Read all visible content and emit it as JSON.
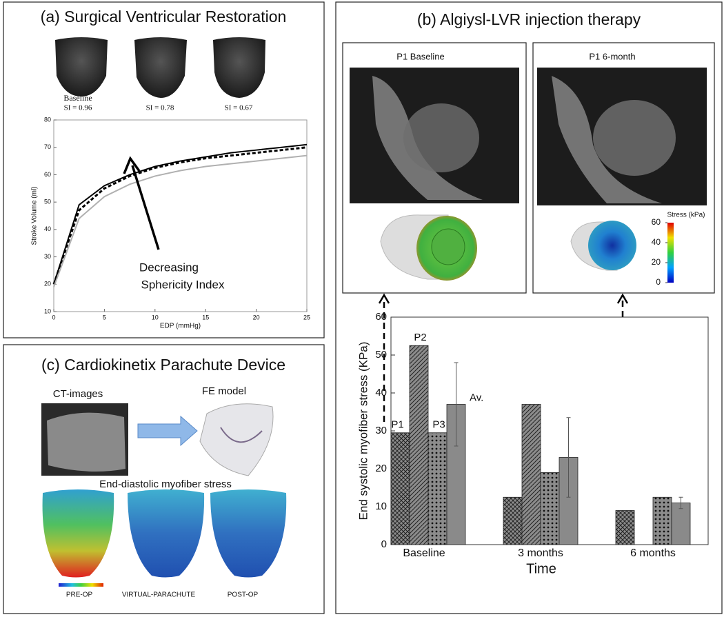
{
  "panel_a": {
    "title": "(a) Surgical Ventricular Restoration",
    "shape_label": "Baseline",
    "si_labels": [
      "SI = 0.96",
      "SI = 0.78",
      "SI = 0.67"
    ]
  },
  "panel_b": {
    "title": "(b) Algiysl-LVR injection therapy",
    "image_titles": [
      "P1 Baseline",
      "P1 6-month"
    ],
    "colorbar": {
      "label": "Stress (kPa)",
      "clim": [
        0,
        60
      ],
      "ticks": [
        0,
        20,
        40,
        60
      ]
    }
  },
  "panel_c": {
    "title": "(c) Cardiokinetix Parachute Device",
    "ct_label": "CT-images",
    "fe_label": "FE model",
    "stress_label": "End-diastolic myofiber stress",
    "case_labels": [
      "PRE-OP",
      "VIRTUAL-PARACHUTE",
      "POST-OP"
    ]
  },
  "chart_data": [
    {
      "type": "line",
      "x": [
        0,
        2.5,
        5,
        7.5,
        10,
        12.5,
        15,
        17.5,
        20,
        22.5,
        25
      ],
      "series": [
        {
          "color": "#000000",
          "linestyle": "solid",
          "values": [
            20,
            49,
            56,
            60,
            63,
            65,
            66.5,
            68,
            69,
            70,
            71
          ]
        },
        {
          "color": "#000000",
          "linestyle": "dashed",
          "values": [
            20,
            47,
            55,
            59.5,
            62.5,
            64.5,
            66,
            67,
            68,
            69,
            70
          ]
        },
        {
          "color": "#b0b0b0",
          "linestyle": "solid",
          "values": [
            19,
            44,
            52,
            56.5,
            59.5,
            61.5,
            63,
            64,
            65,
            66,
            67
          ]
        }
      ],
      "xlim": [
        0,
        25
      ],
      "ylim": [
        10,
        80
      ],
      "xticks": [
        0,
        5,
        10,
        15,
        20,
        25
      ],
      "yticks": [
        10,
        20,
        30,
        40,
        50,
        60,
        70,
        80
      ],
      "xlabel": "EDP (mmHg)",
      "ylabel": "Stroke Volume (ml)",
      "annotation": [
        "Decreasing",
        "Sphericity Index"
      ]
    },
    {
      "type": "bar",
      "categories": [
        "Baseline",
        "3 months",
        "6 months"
      ],
      "series": [
        {
          "name": "P1",
          "color": "#8c8c8c",
          "pattern": "crosshatch",
          "values": [
            29.5,
            12.5,
            9
          ]
        },
        {
          "name": "P2",
          "color": "#8c8c8c",
          "pattern": "hatch",
          "values": [
            52.5,
            37,
            null
          ]
        },
        {
          "name": "P3",
          "color": "#8c8c8c",
          "pattern": "dots",
          "values": [
            29.5,
            19,
            12.5
          ]
        },
        {
          "name": "Av.",
          "color": "#8a8a8a",
          "values": [
            37,
            23,
            11
          ],
          "errors": [
            11,
            10.5,
            1.5
          ]
        }
      ],
      "ylim": [
        0,
        60
      ],
      "yticks": [
        0,
        10,
        20,
        30,
        40,
        50,
        60
      ],
      "xlabel": "Time",
      "ylabel": "End systolic myofiber stress (KPa)"
    }
  ]
}
